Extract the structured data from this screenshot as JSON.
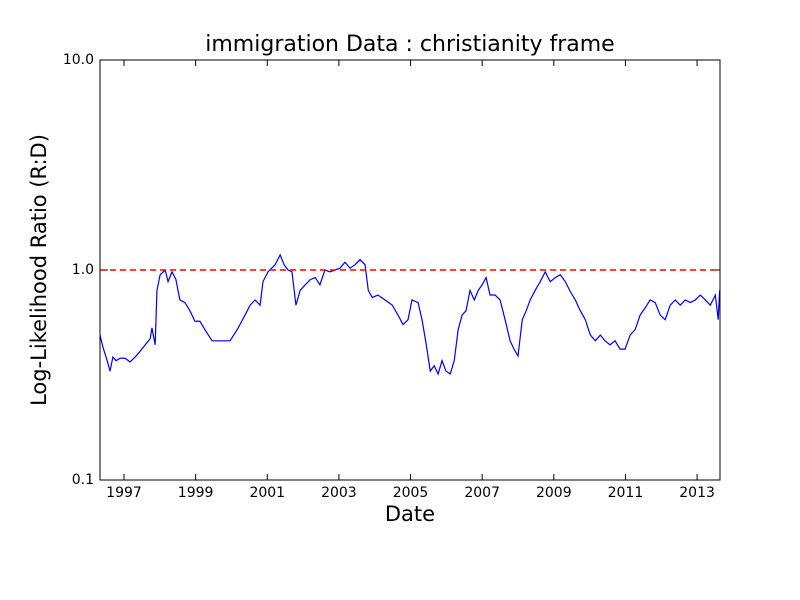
{
  "chart_data": {
    "type": "line",
    "title": "immigration Data : christianity frame",
    "x_label": "Date",
    "y_label": "Log-Likelihood Ratio (R:D)",
    "log_y": true,
    "color": "#0000ff",
    "reference_line": {
      "value": 1,
      "color": "#ff0000",
      "dashed": true
    },
    "xlim": [
      1996.33,
      2013.64
    ],
    "ylim": [
      0.1,
      10
    ],
    "xticks": [
      1997,
      1999,
      2001,
      2003,
      2005,
      2007,
      2009,
      2011,
      2013
    ],
    "yticks": [
      0.1,
      {
        "value": 1,
        "label": "1.0"
      },
      {
        "value": 10,
        "label": "10.0"
      }
    ],
    "x": [
      1996.33,
      1996.41,
      1996.53,
      1996.61,
      1996.69,
      1996.78,
      1996.89,
      1997.03,
      1997.17,
      1997.31,
      1997.45,
      1997.59,
      1997.73,
      1997.78,
      1997.87,
      1997.92,
      1998.01,
      1998.15,
      1998.23,
      1998.34,
      1998.45,
      1998.56,
      1998.7,
      1998.84,
      1998.98,
      1999.12,
      1999.26,
      1999.46,
      1999.68,
      1999.96,
      2000.16,
      2000.38,
      2000.52,
      2000.66,
      2000.8,
      2000.88,
      2001.02,
      2001.22,
      2001.36,
      2001.47,
      2001.58,
      2001.69,
      2001.8,
      2001.92,
      2002.06,
      2002.2,
      2002.34,
      2002.47,
      2002.61,
      2002.75,
      2002.89,
      2003.03,
      2003.17,
      2003.31,
      2003.45,
      2003.59,
      2003.73,
      2003.82,
      2003.93,
      2004.09,
      2004.29,
      2004.49,
      2004.65,
      2004.79,
      2004.93,
      2005.04,
      2005.21,
      2005.32,
      2005.44,
      2005.55,
      2005.66,
      2005.77,
      2005.88,
      2005.99,
      2006.11,
      2006.22,
      2006.33,
      2006.44,
      2006.55,
      2006.66,
      2006.78,
      2006.89,
      2007.0,
      2007.11,
      2007.22,
      2007.36,
      2007.5,
      2007.64,
      2007.78,
      2007.89,
      2008.0,
      2008.12,
      2008.23,
      2008.34,
      2008.48,
      2008.62,
      2008.76,
      2008.9,
      2009.04,
      2009.18,
      2009.32,
      2009.46,
      2009.6,
      2009.74,
      2009.88,
      2010.02,
      2010.16,
      2010.3,
      2010.43,
      2010.57,
      2010.71,
      2010.85,
      2010.99,
      2011.13,
      2011.27,
      2011.41,
      2011.55,
      2011.69,
      2011.83,
      2011.97,
      2012.11,
      2012.25,
      2012.39,
      2012.53,
      2012.67,
      2012.81,
      2012.95,
      2013.09,
      2013.23,
      2013.37,
      2013.51,
      2013.59,
      2013.63
    ],
    "values": [
      0.49,
      0.43,
      0.37,
      0.33,
      0.385,
      0.37,
      0.38,
      0.38,
      0.365,
      0.385,
      0.41,
      0.44,
      0.47,
      0.53,
      0.44,
      0.8,
      0.95,
      1.0,
      0.88,
      0.98,
      0.9,
      0.72,
      0.7,
      0.64,
      0.57,
      0.57,
      0.52,
      0.46,
      0.46,
      0.46,
      0.52,
      0.61,
      0.68,
      0.72,
      0.68,
      0.88,
      0.98,
      1.06,
      1.18,
      1.06,
      1.0,
      0.98,
      0.68,
      0.8,
      0.85,
      0.9,
      0.92,
      0.85,
      1.0,
      0.98,
      1.0,
      1.02,
      1.09,
      1.02,
      1.06,
      1.12,
      1.06,
      0.8,
      0.74,
      0.76,
      0.72,
      0.68,
      0.61,
      0.55,
      0.58,
      0.72,
      0.7,
      0.58,
      0.44,
      0.33,
      0.35,
      0.32,
      0.37,
      0.33,
      0.32,
      0.37,
      0.52,
      0.61,
      0.64,
      0.8,
      0.72,
      0.8,
      0.85,
      0.92,
      0.76,
      0.76,
      0.72,
      0.58,
      0.46,
      0.42,
      0.39,
      0.58,
      0.64,
      0.72,
      0.8,
      0.88,
      0.98,
      0.88,
      0.92,
      0.95,
      0.88,
      0.79,
      0.72,
      0.64,
      0.58,
      0.49,
      0.46,
      0.49,
      0.46,
      0.44,
      0.46,
      0.42,
      0.42,
      0.49,
      0.52,
      0.61,
      0.66,
      0.72,
      0.7,
      0.61,
      0.58,
      0.68,
      0.72,
      0.68,
      0.72,
      0.7,
      0.72,
      0.76,
      0.72,
      0.68,
      0.76,
      0.58,
      0.8
    ]
  }
}
